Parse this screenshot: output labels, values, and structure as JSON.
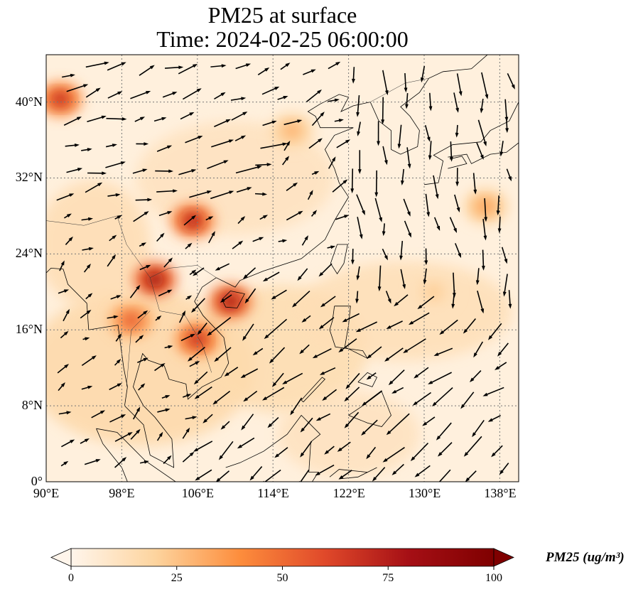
{
  "title": {
    "line1": "PM25 at surface",
    "line2": "Time: 2024-02-25 06:00:00"
  },
  "map": {
    "extent_lon": [
      90,
      140
    ],
    "extent_lat": [
      0,
      45
    ],
    "x_ticks": [
      {
        "v": 90,
        "label": "90°E"
      },
      {
        "v": 98,
        "label": "98°E"
      },
      {
        "v": 106,
        "label": "106°E"
      },
      {
        "v": 114,
        "label": "114°E"
      },
      {
        "v": 122,
        "label": "122°E"
      },
      {
        "v": 130,
        "label": "130°E"
      },
      {
        "v": 138,
        "label": "138°E"
      }
    ],
    "y_ticks": [
      {
        "v": 0,
        "label": "0°"
      },
      {
        "v": 8,
        "label": "8°N"
      },
      {
        "v": 16,
        "label": "16°N"
      },
      {
        "v": 24,
        "label": "24°N"
      },
      {
        "v": 32,
        "label": "32°N"
      },
      {
        "v": 40,
        "label": "40°N"
      }
    ],
    "hotspots": [
      {
        "lon": 105.5,
        "lat": 27.5,
        "value": 75
      },
      {
        "lon": 101.5,
        "lat": 21.3,
        "value": 85
      },
      {
        "lon": 109.5,
        "lat": 19,
        "value": 80
      },
      {
        "lon": 91.5,
        "lat": 40.3,
        "value": 70
      },
      {
        "lon": 106,
        "lat": 15,
        "value": 70
      },
      {
        "lon": 99,
        "lat": 17,
        "value": 55
      },
      {
        "lon": 116,
        "lat": 37,
        "value": 30
      },
      {
        "lon": 136.5,
        "lat": 29,
        "value": 35
      },
      {
        "lon": 131,
        "lat": 20,
        "value": 22
      }
    ]
  },
  "colorbar": {
    "label": "PM25 (ug/m³)",
    "min": 0,
    "max": 100,
    "ticks": [
      "0",
      "25",
      "50",
      "75",
      "100"
    ],
    "colors": [
      "#fff5eb",
      "#fdd49e",
      "#fd8d3c",
      "#e0492a",
      "#a50f15",
      "#7f0000"
    ]
  }
}
